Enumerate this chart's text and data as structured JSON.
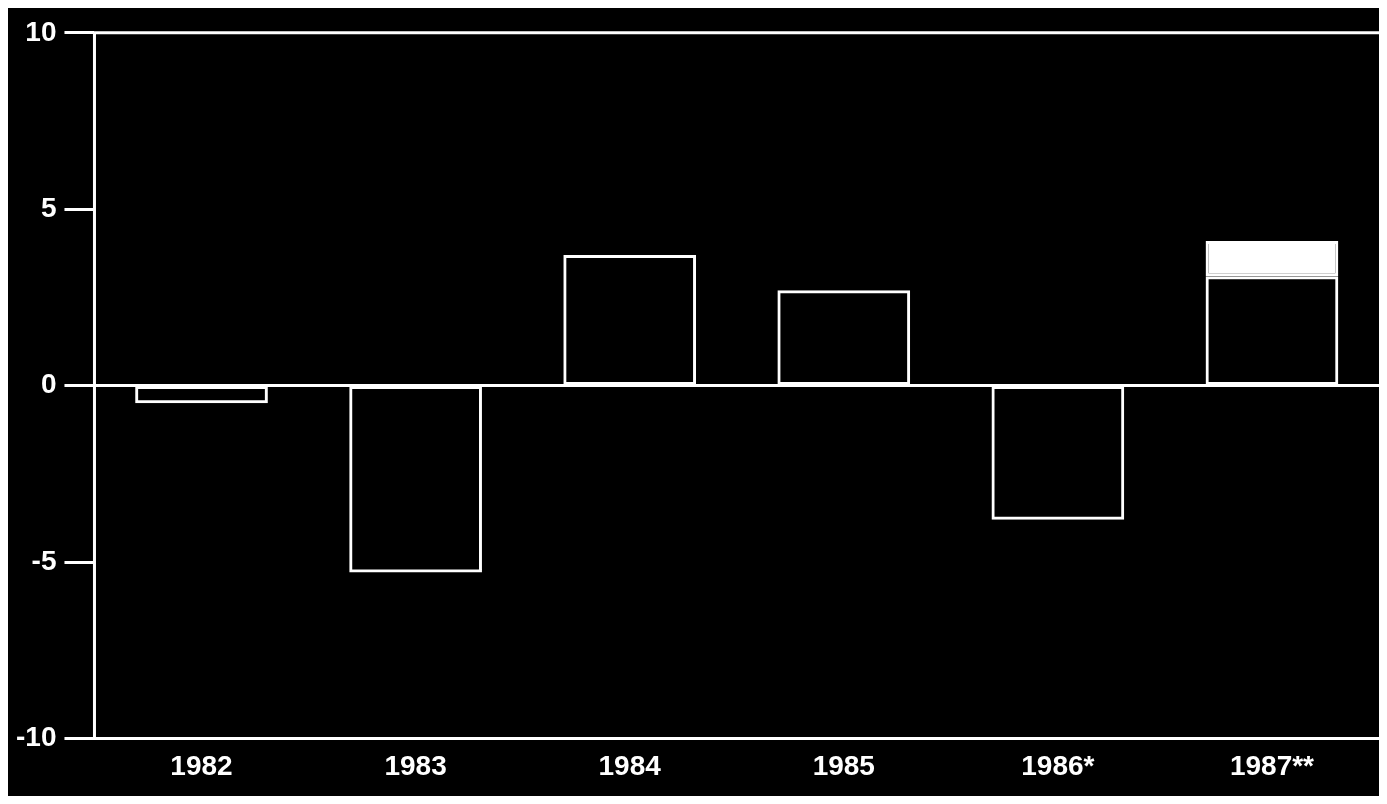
{
  "chart_data": {
    "type": "bar",
    "categories": [
      "1982",
      "1983",
      "1984",
      "1985",
      "1986*",
      "1987**"
    ],
    "stacked": true,
    "series": [
      {
        "color": "#ffffff",
        "values": [
          -0.5,
          -5.3,
          3.7,
          2.7,
          -3.8,
          3.1
        ]
      },
      {
        "color": "#ffffff",
        "values": [
          null,
          null,
          null,
          null,
          null,
          1.0
        ]
      }
    ],
    "ylim": [
      -10,
      10
    ],
    "yticks": [
      -10,
      -5,
      0,
      5,
      10
    ],
    "grid": false,
    "legend": false,
    "ref_lines": [
      {
        "axis": "y",
        "value": 0
      }
    ]
  }
}
